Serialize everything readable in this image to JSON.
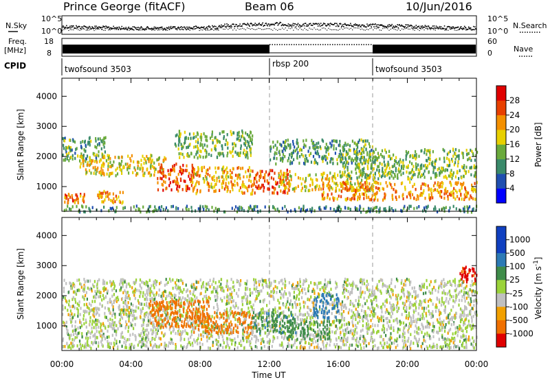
{
  "header": {
    "station": "Prince George (fitACF)",
    "beam": "Beam 06",
    "date": "10/Jun/2016"
  },
  "strip": {
    "nsky_label": "N.Sky",
    "noise_ticks": [
      "10^5",
      "10^0"
    ],
    "nsearch_label": "N.Search",
    "freq_label_1": "Freq.",
    "freq_label_2": "[MHz]",
    "freq_ticks": [
      "18",
      "8"
    ],
    "nave_ticks": [
      "60",
      "0"
    ],
    "nave_label": "Nave",
    "cpid_label": "CPID",
    "cpid_segments": [
      {
        "name": "twofsound 3503",
        "start_hour": 0,
        "end_hour": 12
      },
      {
        "name": "rbsp 200",
        "start_hour": 12,
        "end_hour": 18
      },
      {
        "name": "twofsound 3503",
        "start_hour": 18,
        "end_hour": 24
      }
    ]
  },
  "panels": {
    "power": {
      "ylabel": "Slant Range [km]",
      "cbar_label": "Power [dB]",
      "cbar_ticks": [
        "28",
        "24",
        "20",
        "16",
        "12",
        "8",
        "4"
      ],
      "y_ticks": [
        "4000",
        "3000",
        "2000",
        "1000"
      ]
    },
    "velocity": {
      "ylabel": "Slant Range [km]",
      "cbar_label": "Velocity [m s",
      "cbar_label_sup": "-1",
      "cbar_label_end": "]",
      "cbar_ticks": [
        "1000",
        "500",
        "100",
        "25",
        "-25",
        "-100",
        "-500",
        "-1000"
      ],
      "y_ticks": [
        "4000",
        "3000",
        "2000",
        "1000"
      ]
    }
  },
  "xaxis": {
    "label": "Time UT",
    "ticks": [
      "00:00",
      "04:00",
      "08:00",
      "12:00",
      "16:00",
      "20:00",
      "00:00"
    ]
  },
  "colors": {
    "power_scale": [
      "#0000ff",
      "#1f4fb0",
      "#3a8a6a",
      "#6aaa3c",
      "#e8d000",
      "#f49000",
      "#e84000",
      "#e00000"
    ],
    "velocity_scale": [
      "#1040c0",
      "#2d7ab5",
      "#3f8c4a",
      "#9bd33a",
      "#c0c0c0",
      "#f2a000",
      "#f07000",
      "#e00000"
    ]
  },
  "chart_data": [
    {
      "type": "heatmap",
      "title": "Power",
      "parameter": "Power [dB]",
      "xlabel": "Time UT",
      "ylabel": "Slant Range [km]",
      "xlim_hours": [
        0,
        24
      ],
      "ylim": [
        180,
        4600
      ],
      "color_range": [
        0,
        32
      ],
      "color_ticks": [
        4,
        8,
        12,
        16,
        20,
        24,
        28
      ],
      "scatter_regions": [
        {
          "t_start": 0.1,
          "t_end": 1.3,
          "range_start": 500,
          "range_end": 800,
          "value": 24
        },
        {
          "t_start": 0.0,
          "t_end": 2.5,
          "range_start": 1900,
          "range_end": 2700,
          "value": 12
        },
        {
          "t_start": 1.0,
          "t_end": 6.0,
          "range_start": 1400,
          "range_end": 2100,
          "value": 18
        },
        {
          "t_start": 2.0,
          "t_end": 3.5,
          "range_start": 500,
          "range_end": 900,
          "value": 22
        },
        {
          "t_start": 5.5,
          "t_end": 7.6,
          "range_start": 900,
          "range_end": 1800,
          "value": 26
        },
        {
          "t_start": 7.5,
          "t_end": 11.0,
          "range_start": 800,
          "range_end": 1700,
          "value": 20
        },
        {
          "t_start": 6.5,
          "t_end": 11.0,
          "range_start": 2000,
          "range_end": 2900,
          "value": 14
        },
        {
          "t_start": 11.0,
          "t_end": 13.2,
          "range_start": 800,
          "range_end": 1600,
          "value": 26
        },
        {
          "t_start": 12.0,
          "t_end": 18.0,
          "range_start": 1800,
          "range_end": 2600,
          "value": 12
        },
        {
          "t_start": 12.5,
          "t_end": 18.0,
          "range_start": 900,
          "range_end": 1500,
          "value": 18
        },
        {
          "t_start": 15.0,
          "t_end": 24.0,
          "range_start": 600,
          "range_end": 1200,
          "value": 22
        },
        {
          "t_start": 16.0,
          "t_end": 24.0,
          "range_start": 1300,
          "range_end": 2300,
          "value": 14
        },
        {
          "t_start": 0.0,
          "t_end": 24.0,
          "range_start": 200,
          "range_end": 400,
          "value": 10
        }
      ]
    },
    {
      "type": "heatmap",
      "title": "Velocity",
      "parameter": "Velocity [m s^-1]",
      "xlabel": "Time UT",
      "ylabel": "Slant Range [km]",
      "xlim_hours": [
        0,
        24
      ],
      "ylim": [
        180,
        4600
      ],
      "color_ticks": [
        1000,
        500,
        100,
        25,
        -25,
        -100,
        -500,
        -1000
      ],
      "scatter_regions": [
        {
          "t_start": 0.0,
          "t_end": 24.0,
          "range_start": 300,
          "range_end": 2600,
          "value": 0
        },
        {
          "t_start": 5.0,
          "t_end": 8.5,
          "range_start": 1000,
          "range_end": 1900,
          "value": -300
        },
        {
          "t_start": 7.5,
          "t_end": 11.0,
          "range_start": 800,
          "range_end": 1500,
          "value": -150
        },
        {
          "t_start": 11.0,
          "t_end": 13.5,
          "range_start": 800,
          "range_end": 1500,
          "value": 80
        },
        {
          "t_start": 13.0,
          "t_end": 15.5,
          "range_start": 600,
          "range_end": 1200,
          "value": 60
        },
        {
          "t_start": 14.5,
          "t_end": 16.0,
          "range_start": 1300,
          "range_end": 2100,
          "value": 300
        },
        {
          "t_start": 23.0,
          "t_end": 24.0,
          "range_start": 2500,
          "range_end": 3000,
          "value": -700
        }
      ]
    }
  ]
}
